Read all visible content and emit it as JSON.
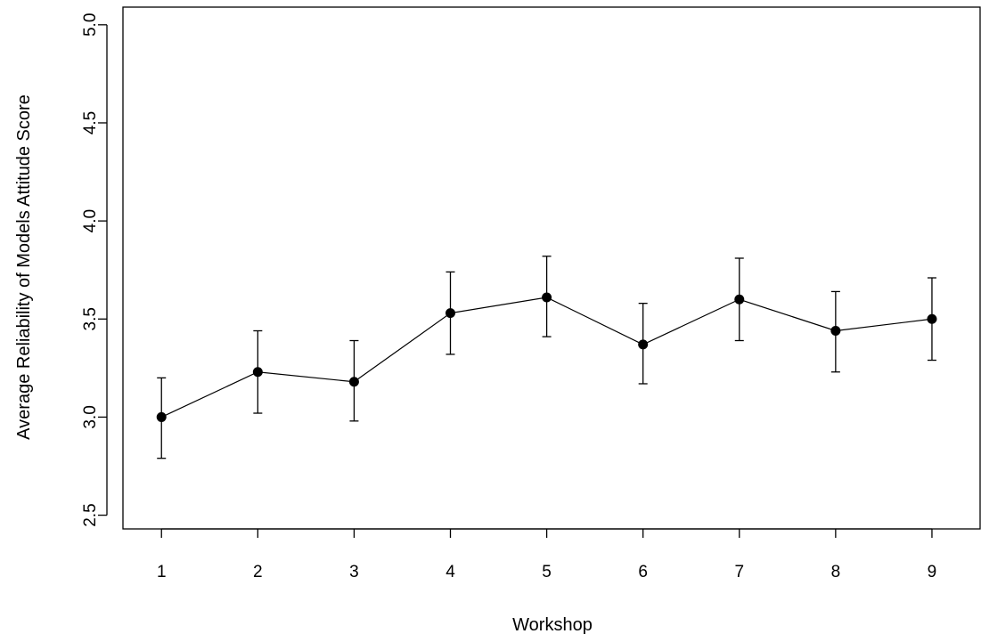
{
  "chart_data": {
    "type": "line",
    "title": "",
    "xlabel": "Workshop",
    "ylabel": "Average Reliability of Models Attitude Score",
    "x": [
      1,
      2,
      3,
      4,
      5,
      6,
      7,
      8,
      9
    ],
    "xticks": [
      1,
      2,
      3,
      4,
      5,
      6,
      7,
      8,
      9
    ],
    "xtick_labels": [
      "1",
      "2",
      "3",
      "4",
      "5",
      "6",
      "7",
      "8",
      "9"
    ],
    "xlim": [
      0.6,
      9.5
    ],
    "yticks": [
      2.5,
      3.0,
      3.5,
      4.0,
      4.5,
      5.0
    ],
    "ytick_labels": [
      "2.5",
      "3.0",
      "3.5",
      "4.0",
      "4.5",
      "5.0"
    ],
    "ylim": [
      2.43,
      5.09
    ],
    "grid": false,
    "series": [
      {
        "values": [
          3.0,
          3.23,
          3.18,
          3.53,
          3.61,
          3.37,
          3.6,
          3.44,
          3.5
        ],
        "error_low": [
          2.79,
          3.02,
          2.98,
          3.32,
          3.41,
          3.17,
          3.39,
          3.23,
          3.29
        ],
        "error_high": [
          3.2,
          3.44,
          3.39,
          3.74,
          3.82,
          3.58,
          3.81,
          3.64,
          3.71
        ],
        "color": "#000000",
        "marker": "filled-circle"
      }
    ]
  }
}
